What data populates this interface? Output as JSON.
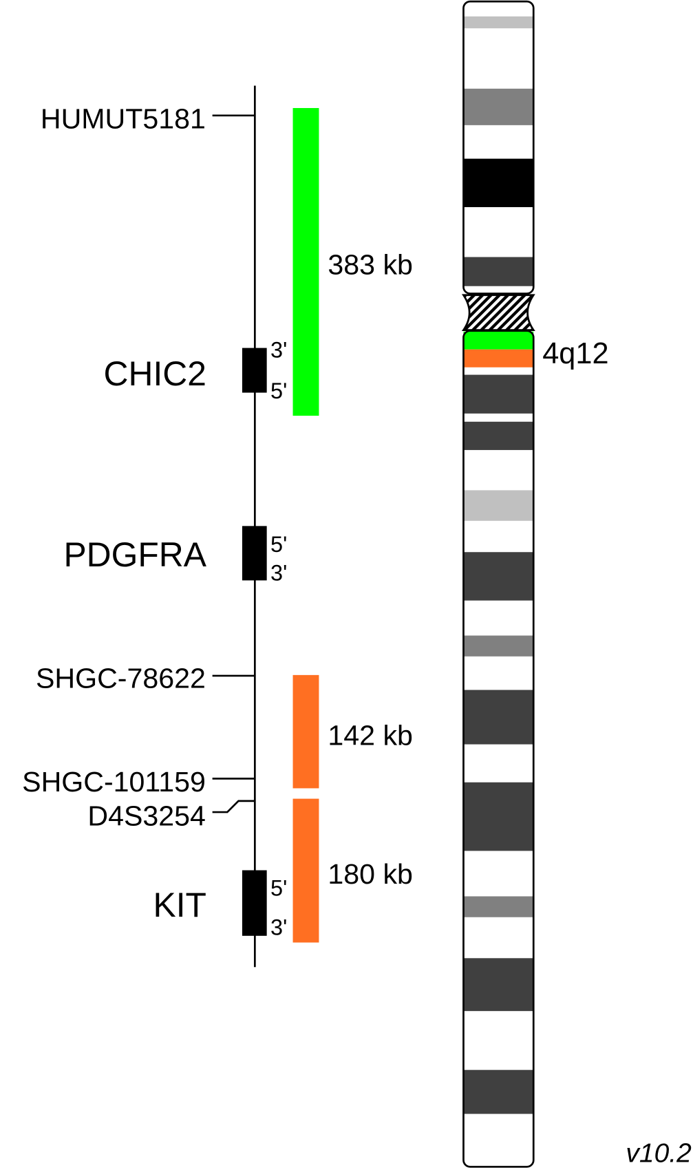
{
  "markers": [
    "HUMUT5181",
    "SHGC-78622",
    "SHGC-101159",
    "D4S3254"
  ],
  "genes": [
    {
      "label": "CHIC2",
      "top_end": "3'",
      "bottom_end": "5'"
    },
    {
      "label": "PDGFRA",
      "top_end": "5'",
      "bottom_end": "3'"
    },
    {
      "label": "KIT",
      "top_end": "5'",
      "bottom_end": "3'"
    }
  ],
  "probes": [
    "383 kb",
    "142 kb",
    "180 kb"
  ],
  "band": "4q12",
  "version": "v10.2"
}
